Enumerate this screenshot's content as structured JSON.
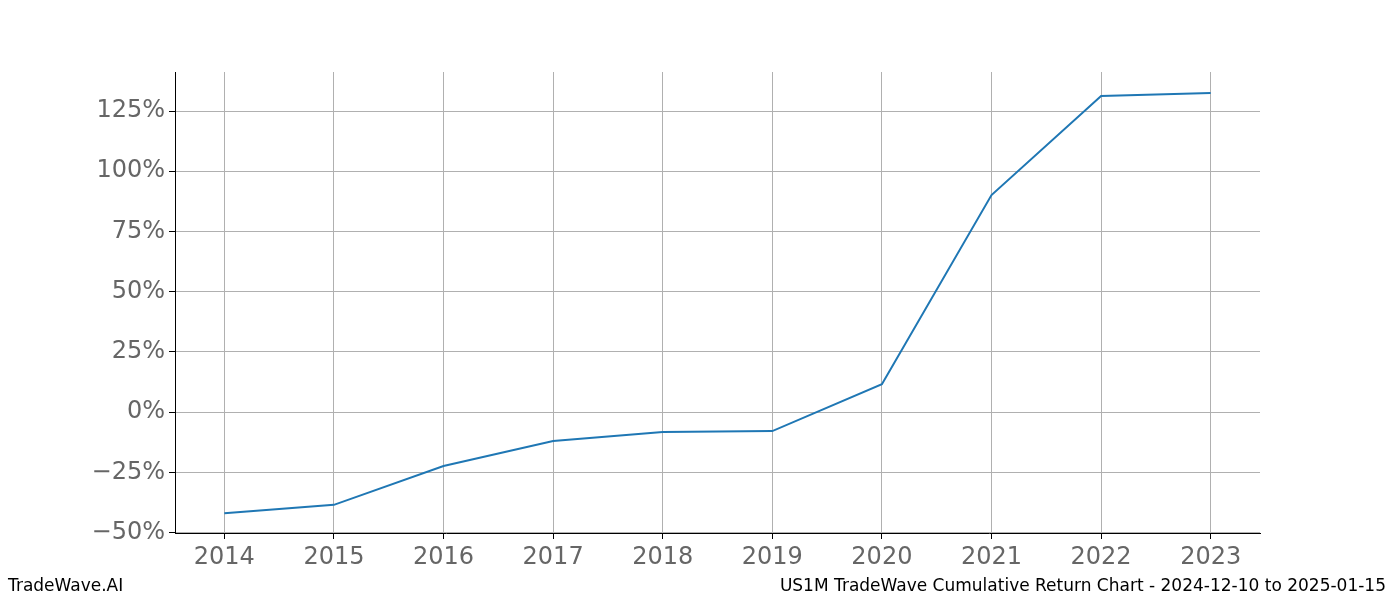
{
  "chart_data": {
    "type": "line",
    "source": "TradeWave.AI",
    "caption": "US1M TradeWave Cumulative Return Chart - 2024-12-10 to 2025-01-15",
    "x": [
      2014,
      2015,
      2016,
      2017,
      2018,
      2019,
      2020,
      2021,
      2022,
      2023
    ],
    "values": [
      -42,
      -38.5,
      -22.4,
      -12,
      -8.3,
      -7.9,
      11.6,
      90.1,
      131.2,
      132.5
    ],
    "color": "#1f77b4",
    "xlim": [
      2013.55,
      2023.45
    ],
    "xticks": [
      2014,
      2015,
      2016,
      2017,
      2018,
      2019,
      2020,
      2021,
      2022,
      2023
    ],
    "ylim": [
      -50.2,
      141.2
    ],
    "yticks": [
      {
        "value": -50,
        "label": "−50%"
      },
      {
        "value": -25,
        "label": "−25%"
      },
      {
        "value": 0,
        "label": "0%"
      },
      {
        "value": 25,
        "label": "25%"
      },
      {
        "value": 50,
        "label": "50%"
      },
      {
        "value": 75,
        "label": "75%"
      },
      {
        "value": 100,
        "label": "100%"
      },
      {
        "value": 125,
        "label": "125%"
      }
    ],
    "grid": true
  }
}
